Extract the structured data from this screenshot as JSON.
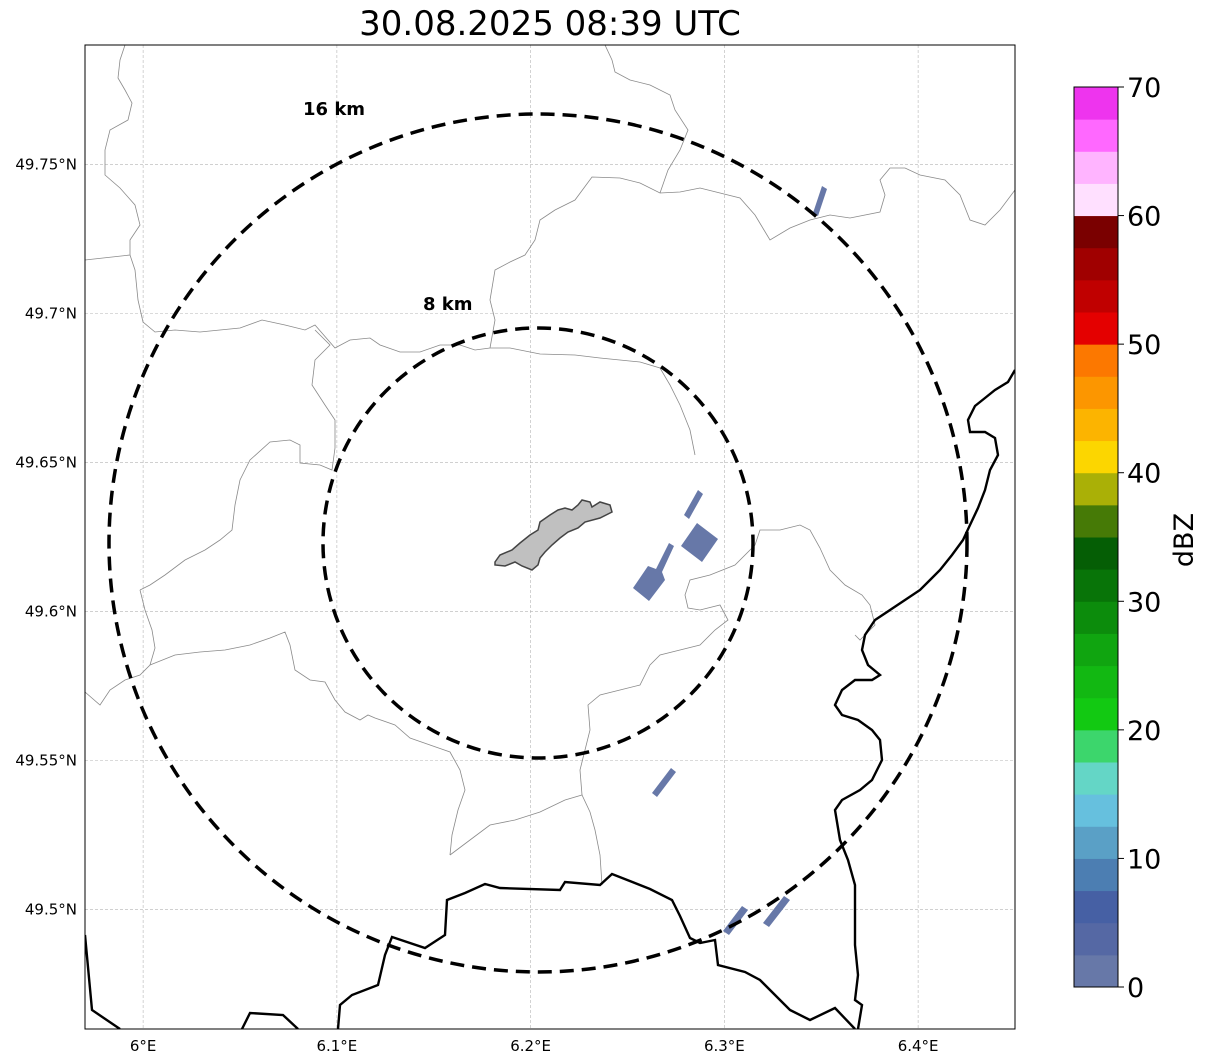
{
  "title": "30.08.2025 08:39 UTC",
  "map": {
    "lon_range": [
      5.97,
      6.45
    ],
    "lat_range": [
      49.46,
      49.79
    ],
    "center": [
      6.203,
      49.623
    ],
    "lon_ticks": [
      {
        "value": 6.0,
        "label": "6°E"
      },
      {
        "value": 6.1,
        "label": "6.1°E"
      },
      {
        "value": 6.2,
        "label": "6.2°E"
      },
      {
        "value": 6.3,
        "label": "6.3°E"
      },
      {
        "value": 6.4,
        "label": "6.4°E"
      }
    ],
    "lat_ticks": [
      {
        "value": 49.5,
        "label": "49.5°N"
      },
      {
        "value": 49.55,
        "label": "49.55°N"
      },
      {
        "value": 49.6,
        "label": "49.6°N"
      },
      {
        "value": 49.65,
        "label": "49.65°N"
      },
      {
        "value": 49.7,
        "label": "49.7°N"
      },
      {
        "value": 49.75,
        "label": "49.75°N"
      }
    ],
    "range_rings": [
      {
        "km": 8,
        "label": "8 km"
      },
      {
        "km": 16,
        "label": "16 km"
      }
    ],
    "gridlines": true
  },
  "colorbar": {
    "label": "dBZ",
    "vmin": 0,
    "vmax": 70,
    "step": 2.5,
    "tick_labels": [
      "0",
      "10",
      "20",
      "30",
      "40",
      "50",
      "60",
      "70"
    ],
    "colors": [
      "#6778a8",
      "#5568a4",
      "#4660a4",
      "#4c7eb2",
      "#5aa0c6",
      "#66c0de",
      "#64d6c6",
      "#3cd66c",
      "#12c912",
      "#12b812",
      "#10a510",
      "#0c8c0c",
      "#087408",
      "#055e05",
      "#467a06",
      "#aab006",
      "#fcd600",
      "#fcb400",
      "#fc9600",
      "#fc7800",
      "#e40000",
      "#c00000",
      "#a00000",
      "#7a0000",
      "#ffe0ff",
      "#ffb4ff",
      "#ff68ff",
      "#ee34ee"
    ]
  },
  "radar_echo_color": "#6778a8",
  "city_fill_color": "#c0c0c0"
}
